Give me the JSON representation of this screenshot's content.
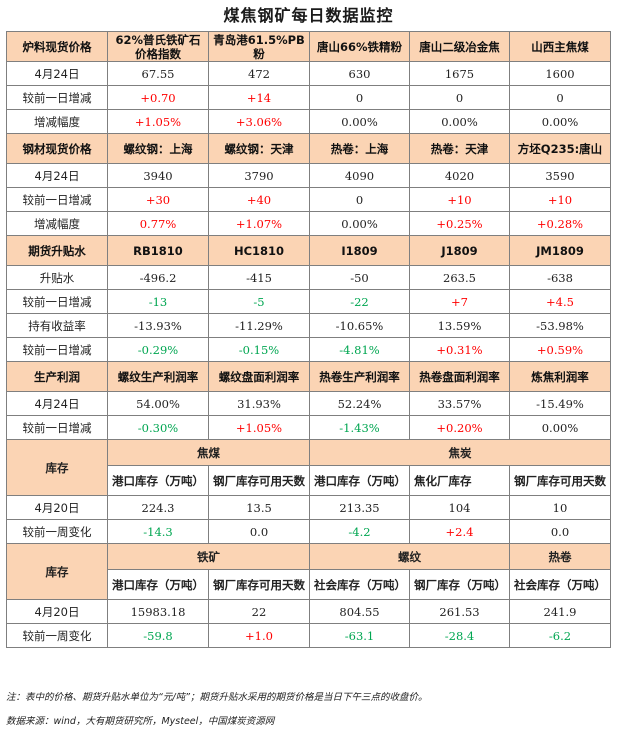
{
  "title": "煤焦钢矿每日数据监控",
  "sections": {
    "raw": {
      "header": [
        "炉料现货价格",
        "62%普氏铁矿石价格指数",
        "青岛港61.5%PB粉",
        "唐山66%铁精粉",
        "唐山二级冶金焦",
        "山西主焦煤"
      ],
      "rows": [
        {
          "label": "4月24日",
          "vals": [
            "67.55",
            "472",
            "630",
            "1675",
            "1600"
          ],
          "colors": [
            "",
            "",
            "",
            "",
            ""
          ]
        },
        {
          "label": "较前一日增减",
          "vals": [
            "+0.70",
            "+14",
            "0",
            "0",
            "0"
          ],
          "colors": [
            "red",
            "red",
            "",
            "",
            ""
          ]
        },
        {
          "label": "增减幅度",
          "vals": [
            "+1.05%",
            "+3.06%",
            "0.00%",
            "0.00%",
            "0.00%"
          ],
          "colors": [
            "red",
            "red",
            "",
            "",
            ""
          ]
        }
      ]
    },
    "steel": {
      "header": [
        "钢材现货价格",
        "螺纹钢：上海",
        "螺纹钢：天津",
        "热卷：上海",
        "热卷：天津",
        "方坯Q235:唐山"
      ],
      "rows": [
        {
          "label": "4月24日",
          "vals": [
            "3940",
            "3790",
            "4090",
            "4020",
            "3590"
          ],
          "colors": [
            "",
            "",
            "",
            "",
            ""
          ]
        },
        {
          "label": "较前一日增减",
          "vals": [
            "+30",
            "+40",
            "0",
            "+10",
            "+10"
          ],
          "colors": [
            "red",
            "red",
            "",
            "red",
            "red"
          ]
        },
        {
          "label": "增减幅度",
          "vals": [
            "0.77%",
            "+1.07%",
            "0.00%",
            "+0.25%",
            "+0.28%"
          ],
          "colors": [
            "red",
            "red",
            "",
            "red",
            "red"
          ]
        }
      ]
    },
    "futures": {
      "header": [
        "期货升贴水",
        "RB1810",
        "HC1810",
        "I1809",
        "J1809",
        "JM1809"
      ],
      "rows": [
        {
          "label": "升贴水",
          "vals": [
            "-496.2",
            "-415",
            "-50",
            "263.5",
            "-638"
          ],
          "colors": [
            "",
            "",
            "",
            "",
            ""
          ]
        },
        {
          "label": "较前一日增减",
          "vals": [
            "-13",
            "-5",
            "-22",
            "+7",
            "+4.5"
          ],
          "colors": [
            "green",
            "green",
            "green",
            "red",
            "red"
          ]
        },
        {
          "label": "持有收益率",
          "vals": [
            "-13.93%",
            "-11.29%",
            "-10.65%",
            "13.59%",
            "-53.98%"
          ],
          "colors": [
            "",
            "",
            "",
            "",
            ""
          ]
        },
        {
          "label": "较前一日增减",
          "vals": [
            "-0.29%",
            "-0.15%",
            "-4.81%",
            "+0.31%",
            "+0.59%"
          ],
          "colors": [
            "green",
            "green",
            "green",
            "red",
            "red"
          ]
        }
      ]
    },
    "profit": {
      "header": [
        "生产利润",
        "螺纹生产利润率",
        "螺纹盘面利润率",
        "热卷生产利润率",
        "热卷盘面利润率",
        "炼焦利润率"
      ],
      "rows": [
        {
          "label": "4月24日",
          "vals": [
            "54.00%",
            "31.93%",
            "52.24%",
            "33.57%",
            "-15.49%"
          ],
          "colors": [
            "",
            "",
            "",
            "",
            ""
          ]
        },
        {
          "label": "较前一日增减",
          "vals": [
            "-0.30%",
            "+1.05%",
            "-1.43%",
            "+0.20%",
            "0.00%"
          ],
          "colors": [
            "green",
            "red",
            "green",
            "red",
            ""
          ]
        }
      ]
    },
    "inv1": {
      "label": "库存",
      "groups": [
        "焦煤",
        "焦炭"
      ],
      "sub": [
        "港口库存（万吨）",
        "钢厂库存可用天数",
        "港口库存（万吨）",
        "焦化厂库存",
        "钢厂库存可用天数"
      ],
      "rows": [
        {
          "label": "4月20日",
          "vals": [
            "224.3",
            "13.5",
            "213.35",
            "104",
            "10"
          ],
          "colors": [
            "",
            "",
            "",
            "",
            ""
          ]
        },
        {
          "label": "较前一周变化",
          "vals": [
            "-14.3",
            "0.0",
            "-4.2",
            "+2.4",
            "0.0"
          ],
          "colors": [
            "green",
            "",
            "green",
            "red",
            ""
          ]
        }
      ]
    },
    "inv2": {
      "label": "库存",
      "groups": [
        "铁矿",
        "螺纹",
        "热卷"
      ],
      "sub": [
        "港口库存（万吨）",
        "钢厂库存可用天数",
        "社会库存（万吨）",
        "钢厂库存（万吨）",
        "社会库存（万吨）"
      ],
      "rows": [
        {
          "label": "4月20日",
          "vals": [
            "15983.18",
            "22",
            "804.55",
            "261.53",
            "241.9"
          ],
          "colors": [
            "",
            "",
            "",
            "",
            ""
          ]
        },
        {
          "label": "较前一周变化",
          "vals": [
            "-59.8",
            "+1.0",
            "-63.1",
            "-28.4",
            "-6.2"
          ],
          "colors": [
            "green",
            "red",
            "green",
            "green",
            "green"
          ]
        }
      ]
    }
  },
  "notes": {
    "note": "注：表中的价格、期货升贴水单位为“元/吨”；期货升贴水采用的期货价格是当日下午三点的收盘价。",
    "source": "数据来源：wind，大有期货研究所，Mysteel，中国煤炭资源网"
  }
}
